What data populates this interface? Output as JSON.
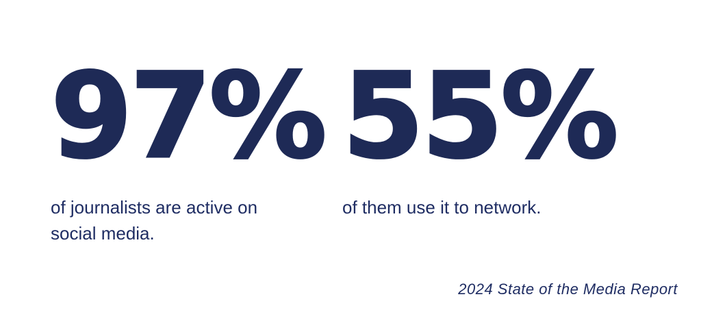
{
  "colors": {
    "stat_navy": "#1e2a56",
    "caption_navy": "#1f2d63",
    "background": "#ffffff"
  },
  "stats": [
    {
      "value": "97%",
      "caption": "of journalists are active on social media."
    },
    {
      "value": "55%",
      "caption": "of them use it to network."
    }
  ],
  "footer": {
    "source": "2024 State of the Media Report"
  }
}
